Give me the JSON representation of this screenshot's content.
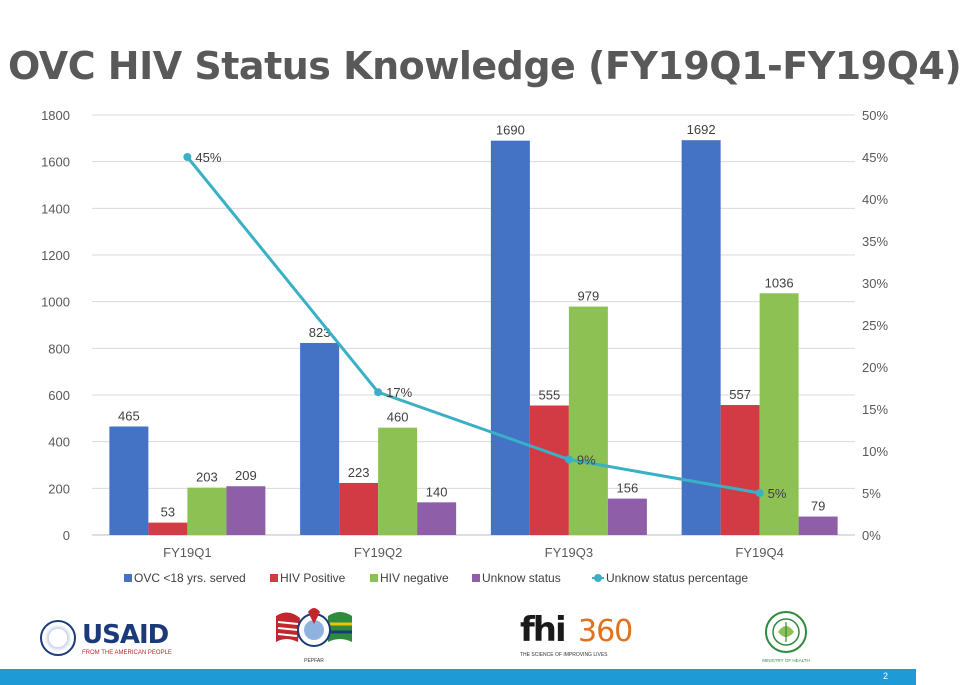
{
  "slide": {
    "title": "OVC HIV Status Knowledge (FY19Q1-FY19Q4)",
    "page_number": "2"
  },
  "chart_data": {
    "type": "bar",
    "title": "",
    "categories": [
      "FY19Q1",
      "FY19Q2",
      "FY19Q3",
      "FY19Q4"
    ],
    "series": [
      {
        "name": "OVC <18 yrs. served",
        "type": "bar",
        "color": "#4472c4",
        "values": [
          465,
          823,
          1690,
          1692
        ]
      },
      {
        "name": "HIV Positive",
        "type": "bar",
        "color": "#d33b44",
        "values": [
          53,
          223,
          555,
          557
        ]
      },
      {
        "name": "HIV negative",
        "type": "bar",
        "color": "#8dc153",
        "values": [
          203,
          460,
          979,
          1036
        ]
      },
      {
        "name": "Unknow status",
        "type": "bar",
        "color": "#8e5ea8",
        "values": [
          209,
          140,
          156,
          79
        ]
      },
      {
        "name": "Unknow status percentage",
        "type": "line",
        "axis": "secondary",
        "color": "#3ab0c6",
        "values": [
          45,
          17,
          9,
          5
        ],
        "labels": [
          "45%",
          "17%",
          "9%",
          "5%"
        ]
      }
    ],
    "y_left": {
      "min": 0,
      "max": 1800,
      "step": 200,
      "ticks": [
        "0",
        "200",
        "400",
        "600",
        "800",
        "1000",
        "1200",
        "1400",
        "1600",
        "1800"
      ]
    },
    "y_right": {
      "min": 0,
      "max": 50,
      "step": 5,
      "ticks": [
        "0%",
        "5%",
        "10%",
        "15%",
        "20%",
        "25%",
        "30%",
        "35%",
        "40%",
        "45%",
        "50%"
      ]
    },
    "grid": true,
    "legend_position": "bottom"
  },
  "logos": {
    "usaid_word": "USAID",
    "usaid_tagline": "FROM THE AMERICAN PEOPLE",
    "fhi_word": "fhi",
    "fhi_number": "360",
    "fhi_tagline": "THE SCIENCE OF IMPROVING LIVES",
    "pepfar_caption": "PEPFAR",
    "moh_caption": "MINISTRY OF HEALTH"
  }
}
